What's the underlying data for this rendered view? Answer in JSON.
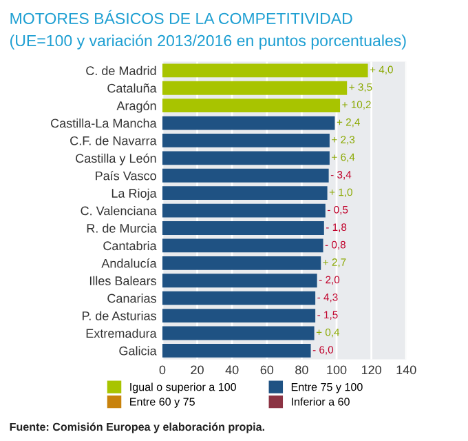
{
  "chart_data": {
    "type": "bar",
    "orientation": "horizontal",
    "title": "MOTORES BÁSICOS DE LA COMPETITIVIDAD",
    "subtitle": "(UE=100 y variación 2013/2016 en puntos porcentuales)",
    "categories": [
      "C. de Madrid",
      "Cataluña",
      "Aragón",
      "Castilla-La Mancha",
      "C.F. de Navarra",
      "Castilla y León",
      "País Vasco",
      "La Rioja",
      "C. Valenciana",
      "R. de Murcia",
      "Cantabria",
      "Andalucía",
      "Illes Balears",
      "Canarias",
      "P. de Asturias",
      "Extremadura",
      "Galicia"
    ],
    "series": [
      {
        "name": "Igual o superior a 100",
        "color": "#a8c400",
        "values": [
          118,
          106,
          102,
          null,
          null,
          null,
          null,
          null,
          null,
          null,
          null,
          null,
          null,
          null,
          null,
          null,
          null
        ]
      },
      {
        "name": "Entre 60 y 75",
        "color": "#c8820c",
        "values": [
          null,
          null,
          null,
          null,
          null,
          null,
          null,
          null,
          null,
          null,
          null,
          null,
          null,
          null,
          null,
          null,
          null
        ]
      },
      {
        "name": "Entre 75 y 100",
        "color": "#1f5283",
        "values": [
          null,
          null,
          null,
          99,
          96,
          96,
          95.5,
          94.7,
          93.6,
          92.8,
          92.3,
          91,
          88.8,
          87.8,
          87.8,
          87.2,
          85.2
        ]
      },
      {
        "name": "Inferior a 60",
        "color": "#8c3343",
        "values": [
          null,
          null,
          null,
          null,
          null,
          null,
          null,
          null,
          null,
          null,
          null,
          null,
          null,
          null,
          null,
          null,
          null
        ]
      }
    ],
    "value_labels": [
      "+ 4,0",
      "+ 3,5",
      "+ 10,2",
      "+ 2,4",
      "+ 2,3",
      "+ 6,4",
      "- 3,4",
      "+ 1,0",
      "- 0,5",
      "- 1,8",
      "- 0,8",
      "+ 2,7",
      "- 2,0",
      "- 4,3",
      "- 1,5",
      "+ 0,4",
      "- 6,0"
    ],
    "xlim": [
      0,
      140
    ],
    "xticks": [
      0,
      20,
      40,
      60,
      80,
      100,
      120,
      140
    ],
    "grid": "x",
    "legend": "bottom",
    "annotations": [
      "Fuente: Comisión Europea y elaboración propia."
    ]
  }
}
